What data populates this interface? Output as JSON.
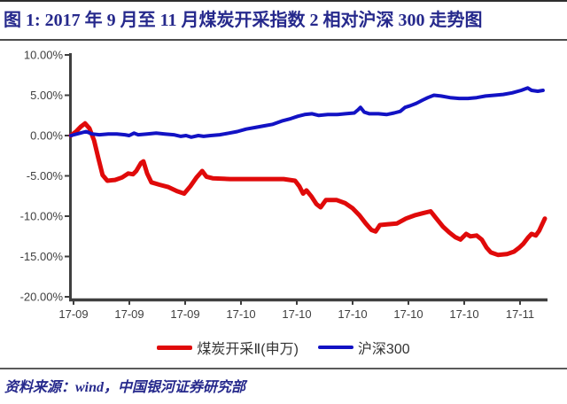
{
  "page": {
    "title": "图 1: 2017 年 9 月至 11 月煤炭开采指数 2 相对沪深 300 走势图",
    "source_note": "资料来源：wind，中国银河证券研究部"
  },
  "colors": {
    "title_text": "#26298c",
    "coal_line": "#e00a0a",
    "csi300_line": "#1212c4",
    "axis": "#3f3f3f"
  },
  "chart_data": {
    "type": "line",
    "title": "2017 年 9 月至 11 月煤炭开采指数 2 相对沪深 300 走势图",
    "xlabel": "",
    "ylabel": "",
    "grid": false,
    "legend_position": "bottom",
    "ylim": [
      -20,
      10
    ],
    "y_ticks": [
      {
        "value": 10,
        "label": "10.00%"
      },
      {
        "value": 5,
        "label": "5.00%"
      },
      {
        "value": 0,
        "label": "0.00%"
      },
      {
        "value": -5,
        "label": "-5.00%"
      },
      {
        "value": -10,
        "label": "-10.00%"
      },
      {
        "value": -15,
        "label": "-15.00%"
      },
      {
        "value": -20,
        "label": "-20.00%"
      }
    ],
    "x_ticks": [
      "17-09",
      "17-09",
      "17-09",
      "17-10",
      "17-10",
      "17-10",
      "17-10",
      "17-10",
      "17-11"
    ],
    "series": [
      {
        "name": "煤炭开采Ⅱ(申万)",
        "color": "#e00a0a",
        "width": 5,
        "points": [
          [
            0.0,
            0.0
          ],
          [
            0.011,
            0.5
          ],
          [
            0.021,
            1.1
          ],
          [
            0.03,
            1.5
          ],
          [
            0.039,
            0.9
          ],
          [
            0.049,
            -0.6
          ],
          [
            0.058,
            -2.8
          ],
          [
            0.067,
            -4.9
          ],
          [
            0.077,
            -5.6
          ],
          [
            0.093,
            -5.5
          ],
          [
            0.108,
            -5.2
          ],
          [
            0.121,
            -4.7
          ],
          [
            0.131,
            -4.8
          ],
          [
            0.138,
            -4.4
          ],
          [
            0.148,
            -3.4
          ],
          [
            0.153,
            -3.2
          ],
          [
            0.161,
            -4.7
          ],
          [
            0.17,
            -5.8
          ],
          [
            0.187,
            -6.1
          ],
          [
            0.206,
            -6.4
          ],
          [
            0.224,
            -6.9
          ],
          [
            0.239,
            -7.2
          ],
          [
            0.252,
            -6.3
          ],
          [
            0.265,
            -5.2
          ],
          [
            0.277,
            -4.4
          ],
          [
            0.286,
            -5.1
          ],
          [
            0.299,
            -5.3
          ],
          [
            0.336,
            -5.4
          ],
          [
            0.393,
            -5.4
          ],
          [
            0.449,
            -5.4
          ],
          [
            0.473,
            -5.6
          ],
          [
            0.482,
            -6.3
          ],
          [
            0.49,
            -7.2
          ],
          [
            0.497,
            -6.8
          ],
          [
            0.507,
            -7.5
          ],
          [
            0.518,
            -8.5
          ],
          [
            0.527,
            -8.9
          ],
          [
            0.538,
            -8.0
          ],
          [
            0.561,
            -8.0
          ],
          [
            0.579,
            -8.4
          ],
          [
            0.594,
            -9.0
          ],
          [
            0.609,
            -9.9
          ],
          [
            0.622,
            -10.9
          ],
          [
            0.634,
            -11.7
          ],
          [
            0.643,
            -11.9
          ],
          [
            0.652,
            -11.1
          ],
          [
            0.669,
            -11.0
          ],
          [
            0.688,
            -10.9
          ],
          [
            0.707,
            -10.3
          ],
          [
            0.725,
            -9.9
          ],
          [
            0.744,
            -9.6
          ],
          [
            0.759,
            -9.4
          ],
          [
            0.77,
            -10.2
          ],
          [
            0.785,
            -11.3
          ],
          [
            0.798,
            -12.0
          ],
          [
            0.811,
            -12.6
          ],
          [
            0.822,
            -12.9
          ],
          [
            0.834,
            -12.2
          ],
          [
            0.843,
            -12.5
          ],
          [
            0.856,
            -12.4
          ],
          [
            0.867,
            -12.9
          ],
          [
            0.877,
            -13.9
          ],
          [
            0.886,
            -14.5
          ],
          [
            0.901,
            -14.8
          ],
          [
            0.92,
            -14.7
          ],
          [
            0.935,
            -14.4
          ],
          [
            0.946,
            -13.9
          ],
          [
            0.955,
            -13.4
          ],
          [
            0.964,
            -12.7
          ],
          [
            0.972,
            -12.2
          ],
          [
            0.981,
            -12.4
          ],
          [
            0.988,
            -11.8
          ],
          [
            1.0,
            -10.3
          ]
        ]
      },
      {
        "name": "沪深300",
        "color": "#1212c4",
        "width": 4,
        "points": [
          [
            0.0,
            0.0
          ],
          [
            0.019,
            0.3
          ],
          [
            0.032,
            0.5
          ],
          [
            0.045,
            0.2
          ],
          [
            0.06,
            0.1
          ],
          [
            0.079,
            0.2
          ],
          [
            0.097,
            0.2
          ],
          [
            0.114,
            0.1
          ],
          [
            0.123,
            0.0
          ],
          [
            0.133,
            0.3
          ],
          [
            0.142,
            0.1
          ],
          [
            0.161,
            0.2
          ],
          [
            0.18,
            0.3
          ],
          [
            0.198,
            0.2
          ],
          [
            0.217,
            0.1
          ],
          [
            0.232,
            -0.1
          ],
          [
            0.243,
            0.0
          ],
          [
            0.254,
            -0.2
          ],
          [
            0.269,
            0.0
          ],
          [
            0.28,
            -0.1
          ],
          [
            0.295,
            0.0
          ],
          [
            0.314,
            0.1
          ],
          [
            0.333,
            0.3
          ],
          [
            0.351,
            0.5
          ],
          [
            0.37,
            0.8
          ],
          [
            0.389,
            1.0
          ],
          [
            0.407,
            1.2
          ],
          [
            0.426,
            1.4
          ],
          [
            0.445,
            1.8
          ],
          [
            0.464,
            2.1
          ],
          [
            0.479,
            2.4
          ],
          [
            0.493,
            2.6
          ],
          [
            0.509,
            2.7
          ],
          [
            0.523,
            2.5
          ],
          [
            0.542,
            2.6
          ],
          [
            0.561,
            2.6
          ],
          [
            0.579,
            2.7
          ],
          [
            0.598,
            2.8
          ],
          [
            0.606,
            3.2
          ],
          [
            0.611,
            3.5
          ],
          [
            0.619,
            2.9
          ],
          [
            0.63,
            2.7
          ],
          [
            0.649,
            2.7
          ],
          [
            0.666,
            2.6
          ],
          [
            0.682,
            2.8
          ],
          [
            0.695,
            3.0
          ],
          [
            0.705,
            3.5
          ],
          [
            0.716,
            3.7
          ],
          [
            0.729,
            4.0
          ],
          [
            0.742,
            4.4
          ],
          [
            0.753,
            4.7
          ],
          [
            0.766,
            5.0
          ],
          [
            0.781,
            4.9
          ],
          [
            0.8,
            4.7
          ],
          [
            0.819,
            4.6
          ],
          [
            0.838,
            4.6
          ],
          [
            0.856,
            4.7
          ],
          [
            0.875,
            4.9
          ],
          [
            0.894,
            5.0
          ],
          [
            0.912,
            5.1
          ],
          [
            0.931,
            5.3
          ],
          [
            0.95,
            5.6
          ],
          [
            0.964,
            5.9
          ],
          [
            0.972,
            5.6
          ],
          [
            0.985,
            5.5
          ],
          [
            0.996,
            5.6
          ]
        ]
      }
    ]
  }
}
